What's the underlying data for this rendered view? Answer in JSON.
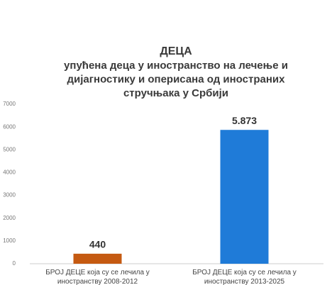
{
  "chart_data": {
    "type": "bar",
    "title": "ДЕЦА",
    "subtitle": [
      "упућена деца у иностранство на лечење и",
      "дијагностику и оперисана од иностраних",
      "стручњака у Србији"
    ],
    "categories": [
      "БРОЈ ДЕЦЕ која су се лечила у иностранству 2008-2012",
      "БРОЈ ДЕЦЕ која су се лечила у иностранству 2013-2025"
    ],
    "values": [
      440,
      5873
    ],
    "value_labels": [
      "440",
      "5.873"
    ],
    "colors": [
      "#c55a11",
      "#1f7bd8"
    ],
    "ylim": [
      0,
      7000
    ],
    "yticks": [
      0,
      1000,
      2000,
      3000,
      4000,
      5000,
      6000,
      7000
    ],
    "grid": false
  }
}
